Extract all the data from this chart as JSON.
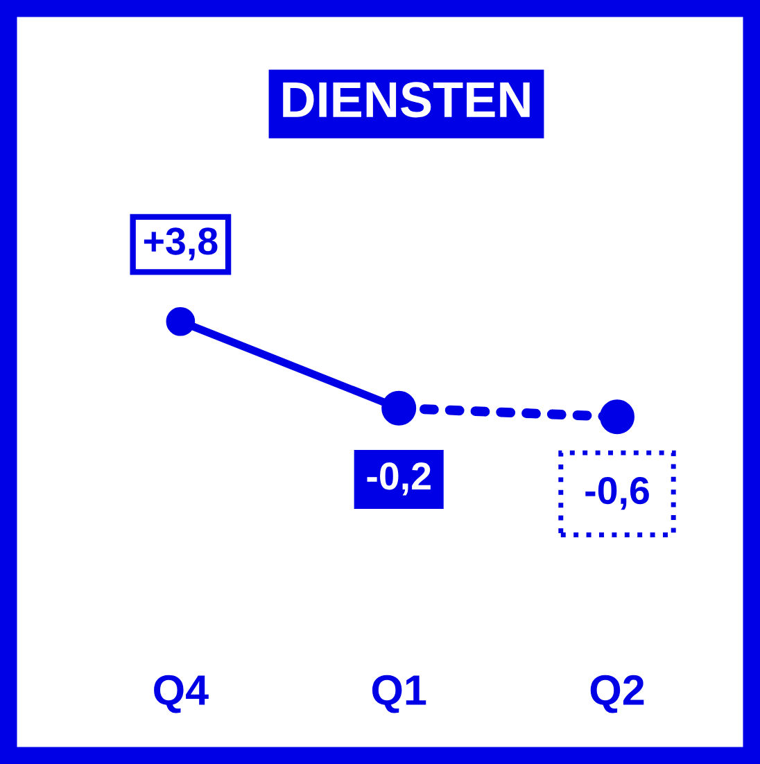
{
  "chart_data": {
    "type": "line",
    "title": "DIENSTEN",
    "categories": [
      "Q4",
      "Q1",
      "Q2"
    ],
    "series": [
      {
        "color": "#0000e6",
        "values": [
          3.8,
          -0.2,
          null
        ],
        "line_style": "solid",
        "value_labels": [
          "+3,8",
          "-0,2",
          null
        ]
      },
      {
        "color": "#0000e6",
        "values": [
          null,
          -0.2,
          -0.6
        ],
        "line_style": "dotted",
        "value_labels": [
          null,
          null,
          "-0,6"
        ]
      }
    ],
    "marker": "circle",
    "grid": false,
    "legend": false,
    "tick_labels": "x"
  }
}
